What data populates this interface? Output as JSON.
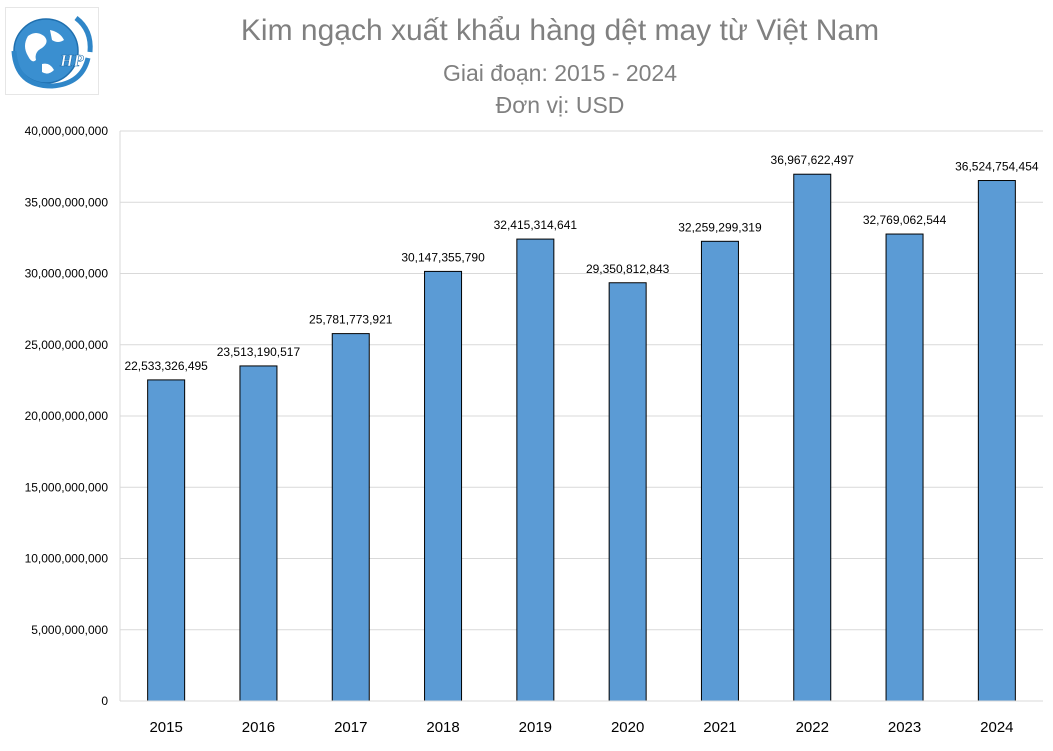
{
  "title": "Kim ngạch xuất khẩu hàng dệt may từ Việt Nam",
  "subtitle": "Giai đoạn: 2015 - 2024",
  "unit": "Đơn vị: USD",
  "logo": {
    "icon": "globe-icon",
    "text": "HP"
  },
  "colors": {
    "bar": "#5b9bd5",
    "bar_border": "#000000",
    "grid": "#d9d9d9",
    "title": "#808080"
  },
  "chart_data": {
    "type": "bar",
    "title": "Kim ngạch xuất khẩu hàng dệt may từ Việt Nam",
    "subtitle": "Giai đoạn: 2015 - 2024",
    "ylabel": "",
    "xlabel": "",
    "ylim": [
      0,
      40000000000
    ],
    "ytick_step": 5000000000,
    "ytick_labels": [
      "0",
      "5,000,000,000",
      "10,000,000,000",
      "15,000,000,000",
      "20,000,000,000",
      "25,000,000,000",
      "30,000,000,000",
      "35,000,000,000",
      "40,000,000,000"
    ],
    "grid": true,
    "legend": "none",
    "categories": [
      "2015",
      "2016",
      "2017",
      "2018",
      "2019",
      "2020",
      "2021",
      "2022",
      "2023",
      "2024"
    ],
    "values": [
      22533326495,
      23513190517,
      25781773921,
      30147355790,
      32415314641,
      29350812843,
      32259299319,
      36967622497,
      32769062544,
      36524754454
    ],
    "data_labels": [
      "22,533,326,495",
      "23,513,190,517",
      "25,781,773,921",
      "30,147,355,790",
      "32,415,314,641",
      "29,350,812,843",
      "32,259,299,319",
      "36,967,622,497",
      "32,769,062,544",
      "36,524,754,454"
    ]
  }
}
